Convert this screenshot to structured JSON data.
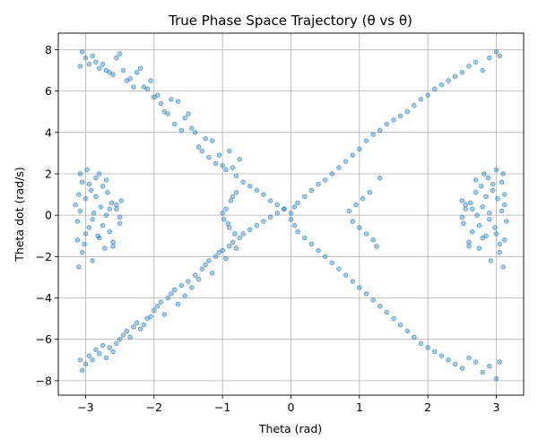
{
  "chart_data": {
    "type": "scatter",
    "title": "True Phase Space Trajectory (θ vs θ)",
    "xlabel": "Theta (rad)",
    "ylabel": "Theta dot (rad/s)",
    "xlim": [
      -3.4,
      3.4
    ],
    "ylim": [
      -8.7,
      8.8
    ],
    "xticks": [
      -3,
      -2,
      -1,
      0,
      1,
      2,
      3
    ],
    "yticks": [
      -8,
      -6,
      -4,
      -2,
      0,
      2,
      4,
      6,
      8
    ],
    "grid": true,
    "point_color": "#1f77b4",
    "point_alpha": 0.4,
    "series": [
      {
        "x": [
          -3.08,
          -3.05,
          -3.0,
          -2.95,
          -2.9,
          -2.85,
          -2.8,
          -2.75,
          -2.7,
          -2.65,
          -2.6,
          -2.55,
          -2.5,
          -2.45,
          -2.4,
          -2.35,
          -2.3,
          -2.25,
          -2.2,
          -2.15,
          -2.1,
          -2.05,
          -2.0,
          -1.95,
          -1.9,
          -1.85,
          -1.8,
          -1.75,
          -1.7,
          -1.65,
          -1.6,
          -1.55,
          -1.5,
          -1.45,
          -1.4,
          -1.35,
          -1.3,
          -1.25,
          -1.2,
          -1.15,
          -1.1,
          -1.05,
          -1.0,
          -0.95,
          -0.9,
          -0.85,
          -0.8,
          -0.75,
          -0.7,
          -0.6,
          -0.5,
          -0.4,
          -0.3,
          -0.2,
          -0.1,
          0.0,
          0.05,
          0.1,
          0.2,
          0.3,
          0.4,
          0.5,
          0.6,
          0.7,
          0.8,
          0.9,
          1.0,
          1.1,
          1.2,
          1.3,
          1.4,
          1.5,
          1.6,
          1.7,
          1.8,
          1.9,
          2.0,
          2.1,
          2.2,
          2.3,
          2.4,
          2.5,
          2.6,
          2.7,
          2.8,
          2.9,
          3.0,
          3.05,
          -3.08,
          -3.05,
          -3.0,
          -2.95,
          -2.9,
          -2.85,
          -2.8,
          -2.75,
          -2.7,
          -2.65,
          -2.6,
          -2.55,
          -2.5,
          -2.45,
          -2.4,
          -2.35,
          -2.3,
          -2.25,
          -2.2,
          -2.15,
          -2.1,
          -2.05,
          -2.0,
          -1.95,
          -1.9,
          -1.85,
          -1.8,
          -1.75,
          -1.7,
          -1.65,
          -1.6,
          -1.55,
          -1.5,
          -1.45,
          -1.4,
          -1.35,
          -1.3,
          -1.25,
          -1.2,
          -1.15,
          -1.1,
          -1.05,
          -1.0,
          -0.95,
          -0.9,
          -0.85,
          -0.8,
          -0.75,
          -0.7,
          -0.6,
          -0.5,
          -0.4,
          -0.3,
          -0.2,
          -0.1,
          0.0,
          0.05,
          0.1,
          0.2,
          0.3,
          0.4,
          0.5,
          0.6,
          0.7,
          0.8,
          0.9,
          1.0,
          1.1,
          1.2,
          1.3,
          1.4,
          1.5,
          1.6,
          1.7,
          1.8,
          1.9,
          2.0,
          2.1,
          2.2,
          2.3,
          2.4,
          2.5,
          2.6,
          2.7,
          2.8,
          2.9,
          3.0,
          3.05,
          -3.15,
          -3.12,
          -3.1,
          -3.08,
          -3.05,
          -3.02,
          -3.0,
          -2.98,
          -2.95,
          -2.92,
          -2.9,
          -2.88,
          -2.85,
          -2.82,
          -2.8,
          -2.78,
          -2.75,
          -2.72,
          -2.7,
          -2.68,
          -2.65,
          -2.62,
          -2.6,
          -2.55,
          -2.5,
          -2.48,
          -3.12,
          -3.1,
          -3.08,
          -3.05,
          -3.0,
          -2.95,
          -2.9,
          -2.85,
          -2.8,
          -2.75,
          -2.7,
          -2.65,
          -2.6,
          -2.55,
          -2.5,
          2.5,
          2.52,
          2.55,
          2.6,
          2.62,
          2.65,
          2.7,
          2.72,
          2.75,
          2.78,
          2.8,
          2.82,
          2.85,
          2.88,
          2.9,
          2.92,
          2.95,
          2.98,
          3.0,
          3.02,
          3.05,
          3.08,
          3.1,
          3.12,
          3.15,
          3.12,
          2.5,
          2.55,
          2.6,
          2.65,
          2.7,
          2.75,
          2.8,
          2.85,
          2.9,
          2.95,
          3.0,
          3.05,
          3.08,
          3.1,
          3.12,
          -1.0,
          -0.98,
          -0.95,
          -0.92,
          -0.9,
          -0.88,
          -0.85,
          -0.82,
          -0.8,
          0.85,
          0.9,
          0.95,
          1.0,
          1.05,
          1.1,
          1.15,
          1.2,
          1.25,
          1.3
        ],
        "y": [
          7.2,
          7.9,
          7.6,
          7.3,
          7.7,
          7.4,
          7.1,
          7.3,
          7.0,
          6.9,
          6.8,
          7.6,
          7.8,
          7.0,
          6.5,
          6.6,
          6.2,
          6.9,
          7.1,
          6.2,
          6.1,
          6.5,
          5.7,
          5.8,
          5.4,
          5.0,
          4.9,
          5.6,
          4.4,
          5.5,
          4.1,
          4.7,
          4.9,
          4.2,
          4.0,
          3.3,
          3.1,
          3.7,
          2.8,
          3.6,
          2.5,
          2.9,
          2.4,
          2.2,
          3.1,
          2.3,
          1.9,
          2.7,
          1.6,
          1.4,
          1.2,
          1.0,
          0.7,
          0.5,
          0.3,
          0.1,
          0.4,
          0.6,
          0.9,
          1.2,
          1.5,
          1.7,
          2.0,
          2.3,
          2.6,
          2.9,
          3.2,
          3.6,
          3.9,
          4.1,
          4.4,
          4.6,
          4.8,
          5.0,
          5.3,
          5.6,
          5.8,
          6.1,
          6.3,
          6.5,
          6.7,
          6.9,
          7.2,
          7.4,
          7.0,
          7.6,
          7.9,
          7.7,
          -7.0,
          -7.5,
          -7.2,
          -6.8,
          -7.0,
          -6.5,
          -6.7,
          -6.3,
          -6.9,
          -6.4,
          -6.6,
          -6.2,
          -6.0,
          -5.8,
          -5.6,
          -5.9,
          -5.4,
          -5.2,
          -5.5,
          -5.3,
          -5.0,
          -4.9,
          -4.6,
          -4.4,
          -4.2,
          -4.8,
          -4.0,
          -3.8,
          -3.6,
          -4.3,
          -3.4,
          -3.9,
          -3.2,
          -3.5,
          -2.9,
          -3.1,
          -2.6,
          -2.4,
          -2.2,
          -2.8,
          -2.0,
          -1.8,
          -1.7,
          -2.1,
          -1.5,
          -1.3,
          -1.6,
          -1.1,
          -0.9,
          -0.7,
          -0.5,
          -0.3,
          -0.1,
          0.1,
          0.3,
          -0.2,
          -0.5,
          -0.8,
          -1.1,
          -1.4,
          -1.7,
          -2.0,
          -2.3,
          -2.6,
          -2.9,
          -3.2,
          -3.5,
          -3.8,
          -4.1,
          -4.4,
          -4.7,
          -5.0,
          -5.3,
          -5.6,
          -5.9,
          -6.2,
          -6.4,
          -6.6,
          -6.8,
          -7.0,
          -7.2,
          -7.4,
          -6.9,
          -7.1,
          -7.6,
          -7.3,
          -7.9,
          -7.1,
          0.5,
          -0.3,
          1.0,
          2.0,
          1.6,
          -1.4,
          0.8,
          2.2,
          -0.6,
          1.2,
          -2.2,
          0.1,
          1.8,
          -1.0,
          2.0,
          0.4,
          1.4,
          -1.6,
          0.0,
          1.1,
          -0.8,
          0.6,
          -1.5,
          0.3,
          -0.4,
          0.7,
          -1.2,
          -2.5,
          0.2,
          -1.8,
          -0.9,
          1.5,
          -0.2,
          0.9,
          -1.1,
          -0.5,
          1.7,
          0.3,
          -1.3,
          0.5,
          -0.1,
          0.7,
          -0.4,
          0.3,
          -1.5,
          0.6,
          -0.8,
          1.1,
          0.0,
          -1.6,
          1.4,
          0.4,
          2.0,
          -1.0,
          1.8,
          0.1,
          -2.2,
          1.2,
          -0.6,
          2.2,
          0.8,
          -1.4,
          1.6,
          2.0,
          1.0,
          -0.3,
          0.5,
          -0.1,
          0.5,
          -1.3,
          0.3,
          1.7,
          -0.5,
          -1.1,
          0.9,
          -0.2,
          1.5,
          -0.9,
          -1.8,
          0.2,
          -2.5,
          -1.2,
          0.1,
          -0.2,
          0.3,
          -0.4,
          -0.6,
          0.7,
          0.9,
          -0.9,
          1.1,
          0.2,
          -0.3,
          0.5,
          -0.6,
          0.8,
          -0.9,
          1.1,
          -1.2,
          -1.5,
          1.8
        ]
      }
    ]
  }
}
